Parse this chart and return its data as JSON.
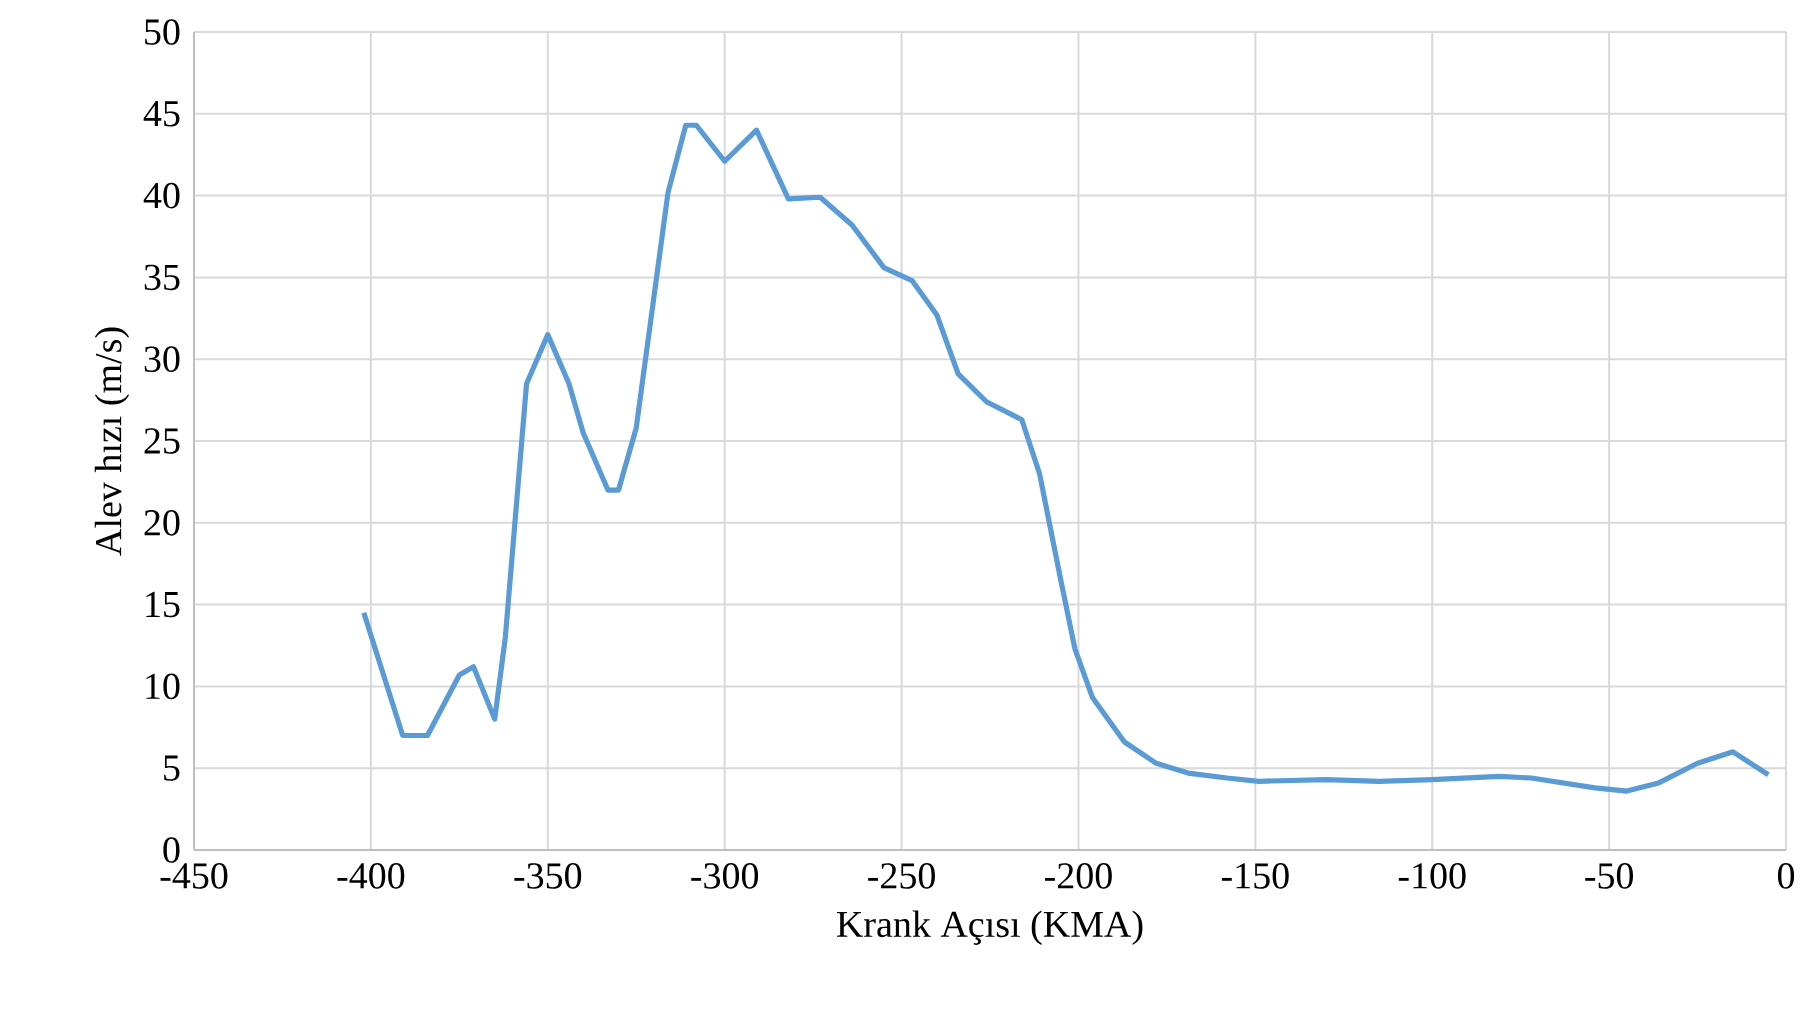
{
  "chart_data": {
    "type": "line",
    "xlabel": "Krank Açısı (KMA)",
    "ylabel": "Alev hızı (m/s)",
    "xlim": [
      -450,
      0
    ],
    "ylim": [
      0,
      50
    ],
    "xticks": [
      -450,
      -400,
      -350,
      -300,
      -250,
      -200,
      -150,
      -100,
      -50,
      0
    ],
    "yticks": [
      0,
      5,
      10,
      15,
      20,
      25,
      30,
      35,
      40,
      45,
      50
    ],
    "grid": true,
    "marker": "none",
    "line_style": "solid",
    "series": [
      {
        "color": "#5b9bd5",
        "x": [
          -402,
          -391,
          -384,
          -375,
          -371,
          -365,
          -362,
          -356,
          -350,
          -344,
          -340,
          -333,
          -330,
          -325,
          -316,
          -311,
          -308,
          -300,
          -291,
          -282,
          -273,
          -264,
          -255,
          -247,
          -240,
          -234,
          -226,
          -216,
          -211,
          -205,
          -201,
          -196,
          -187,
          -178,
          -169,
          -158,
          -149,
          -130,
          -115,
          -100,
          -81,
          -72,
          -54,
          -45,
          -36,
          -25,
          -15,
          -5
        ],
        "values": [
          14.5,
          7,
          7,
          10.7,
          11.2,
          8,
          13,
          28.5,
          31.5,
          28.5,
          25.5,
          22,
          22,
          25.8,
          40.2,
          44.3,
          44.3,
          42.1,
          44,
          39.8,
          39.9,
          38.2,
          35.6,
          34.8,
          32.7,
          29.1,
          27.4,
          26.3,
          23,
          16.5,
          12.3,
          9.3,
          6.6,
          5.3,
          4.7,
          4.4,
          4.2,
          4.3,
          4.2,
          4.3,
          4.5,
          4.4,
          3.8,
          3.6,
          4.1,
          5.3,
          6,
          4.6
        ]
      }
    ]
  }
}
